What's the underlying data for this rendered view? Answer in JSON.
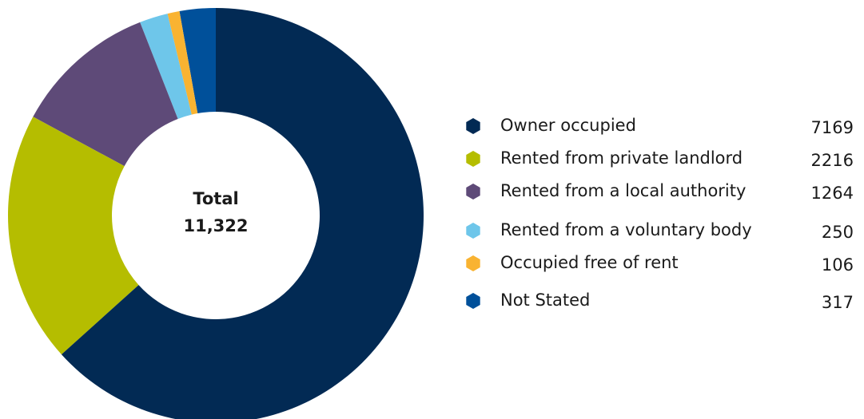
{
  "chart_data": {
    "type": "donut",
    "categories": [
      "Owner occupied",
      "Rented from private landlord",
      "Rented from a local authority",
      "Rented from a voluntary body",
      "Occupied free of rent",
      "Not Stated"
    ],
    "values": [
      7169,
      2216,
      1264,
      250,
      106,
      317
    ],
    "colors": [
      "#022a54",
      "#b5bd00",
      "#5e4a78",
      "#6ec6ea",
      "#f9b331",
      "#00509a"
    ],
    "annotations": [
      "Total",
      "11,322"
    ],
    "legend": "right"
  }
}
